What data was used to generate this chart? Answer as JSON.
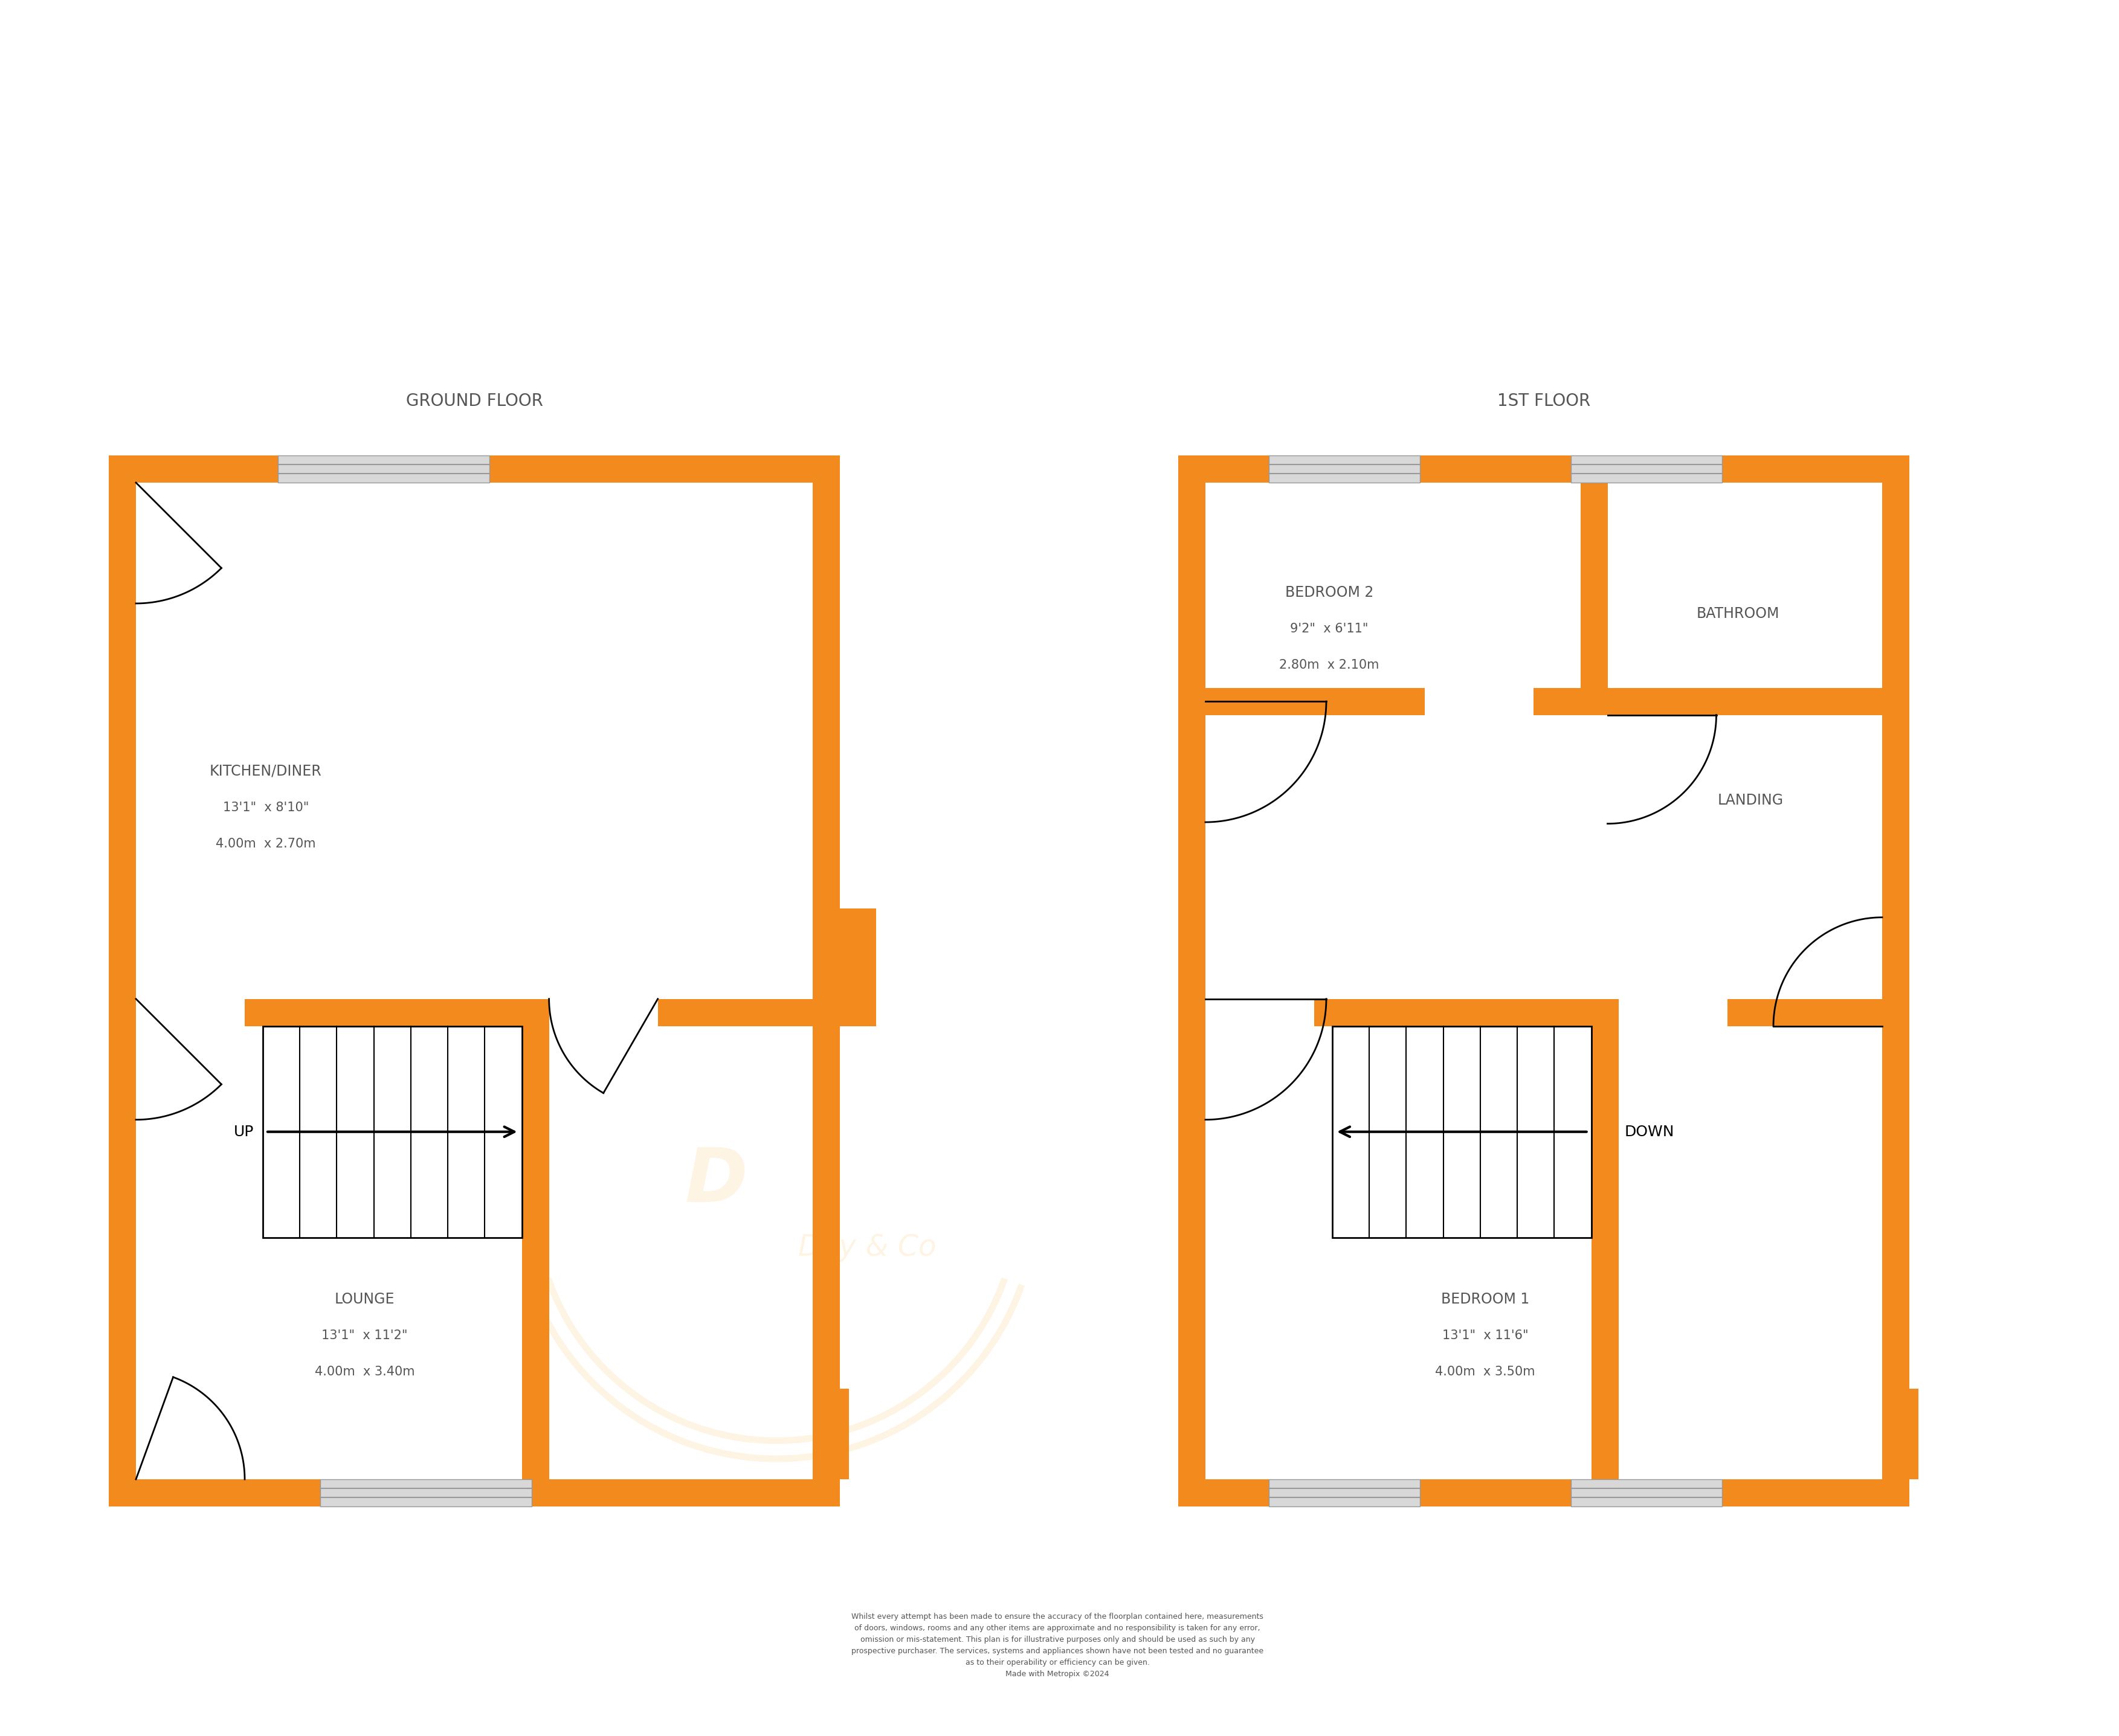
{
  "wall_color": "#F28A1E",
  "bg_color": "#FFFFFF",
  "line_color": "#000000",
  "window_fill": "#D8D8D8",
  "window_line": "#999999",
  "title_color": "#555555",
  "watermark_color": "#F5A623",
  "title_ground": "GROUND FLOOR",
  "title_first": "1ST FLOOR",
  "disclaimer": "Whilst every attempt has been made to ensure the accuracy of the floorplan contained here, measurements\nof doors, windows, rooms and any other items are approximate and no responsibility is taken for any error,\nomission or mis-statement. This plan is for illustrative purposes only and should be used as such by any\nprospective purchaser. The services, systems and appliances shown have not been tested and no guarantee\nas to their operability or efficiency can be given.\nMade with Metropix ©2024"
}
